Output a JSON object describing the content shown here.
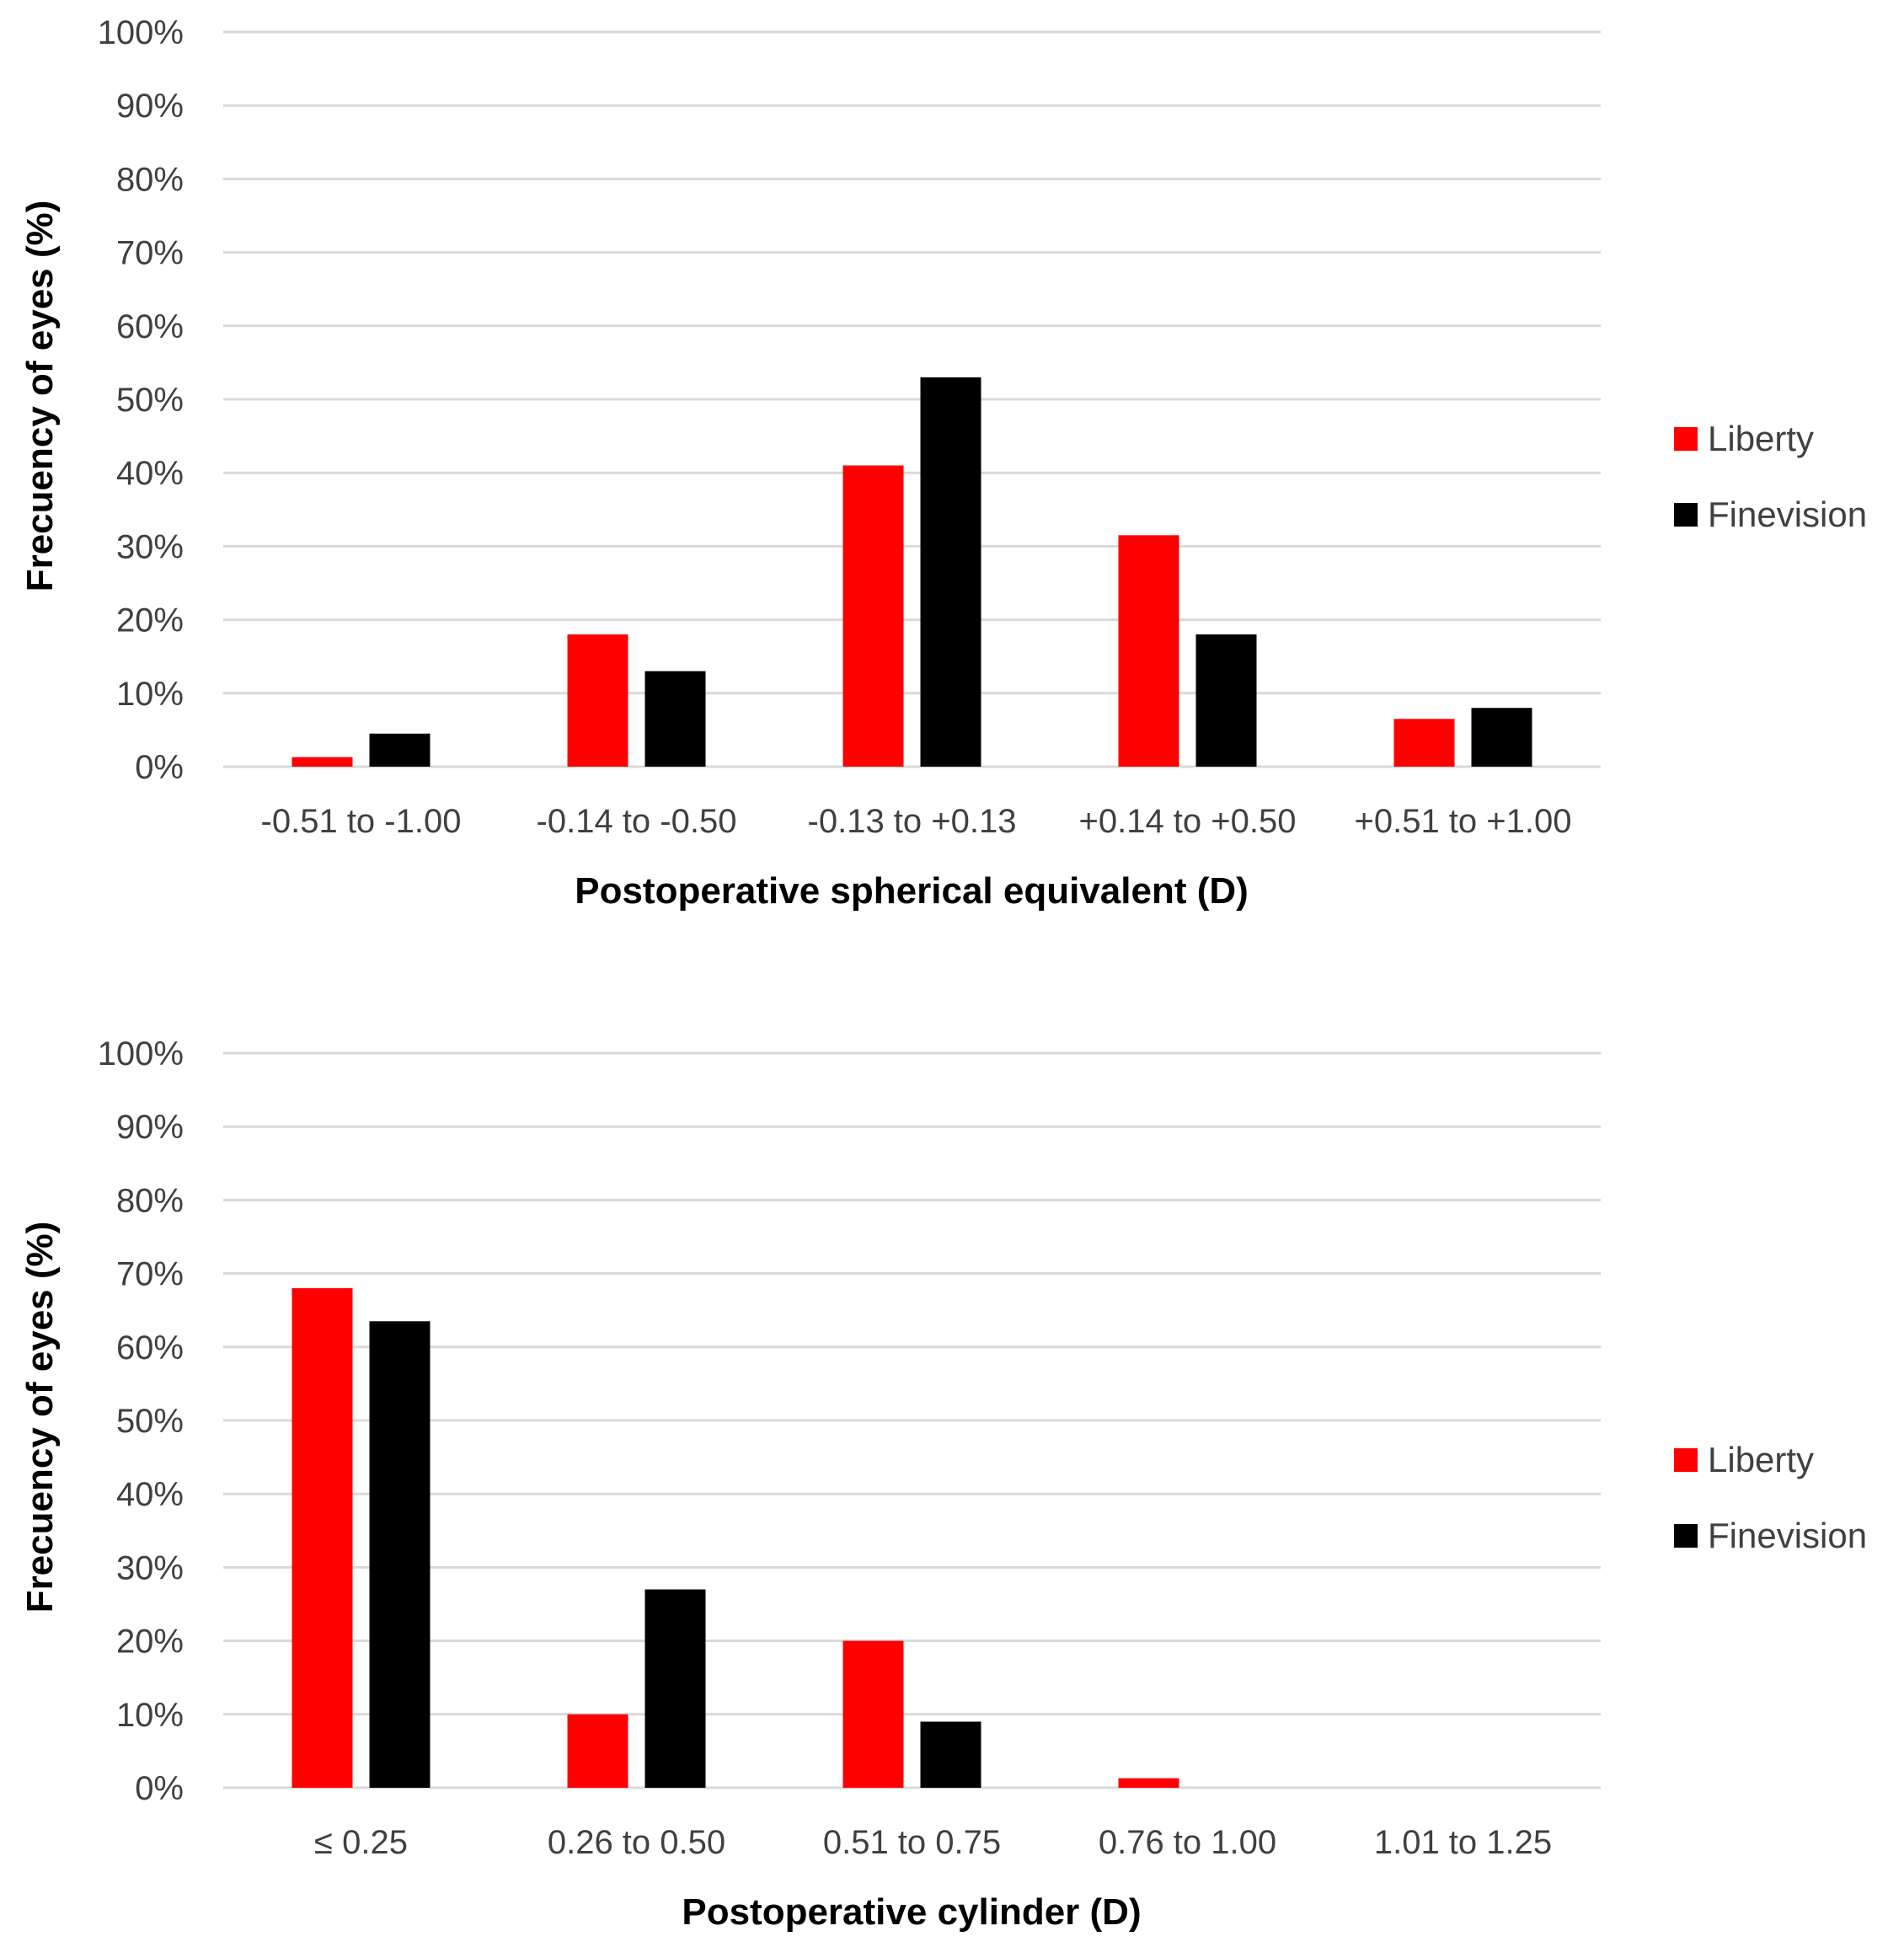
{
  "colors": {
    "Liberty": "#ff0000",
    "Finevision": "#000000",
    "grid": "#d9d9d9"
  },
  "chart_data": [
    {
      "type": "bar",
      "title": "",
      "xlabel": "Postoperative spherical equivalent (D)",
      "ylabel": "Frecuency of eyes (%)",
      "ylim": [
        0,
        100
      ],
      "yticks": [
        "0%",
        "10%",
        "20%",
        "30%",
        "40%",
        "50%",
        "60%",
        "70%",
        "80%",
        "90%",
        "100%"
      ],
      "categories": [
        "-0.51 to -1.00",
        "-0.14 to -0.50",
        "-0.13 to +0.13",
        "+0.14 to +0.50",
        "+0.51 to +1.00"
      ],
      "series": [
        {
          "name": "Liberty",
          "values": [
            1.3,
            18,
            41,
            31.5,
            6.5
          ]
        },
        {
          "name": "Finevision",
          "values": [
            4.5,
            13,
            53,
            18,
            8
          ]
        }
      ],
      "grid": true,
      "legend_position": "right"
    },
    {
      "type": "bar",
      "title": "",
      "xlabel": "Postoperative cylinder (D)",
      "ylabel": "Frecuency of eyes (%)",
      "ylim": [
        0,
        100
      ],
      "yticks": [
        "0%",
        "10%",
        "20%",
        "30%",
        "40%",
        "50%",
        "60%",
        "70%",
        "80%",
        "90%",
        "100%"
      ],
      "categories": [
        "≤ 0.25",
        "0.26 to 0.50",
        "0.51 to 0.75",
        "0.76 to 1.00",
        "1.01 to 1.25"
      ],
      "series": [
        {
          "name": "Liberty",
          "values": [
            68,
            10,
            20,
            1.3,
            0
          ]
        },
        {
          "name": "Finevision",
          "values": [
            63.5,
            27,
            9,
            0,
            0
          ]
        }
      ],
      "grid": true,
      "legend_position": "right"
    }
  ]
}
